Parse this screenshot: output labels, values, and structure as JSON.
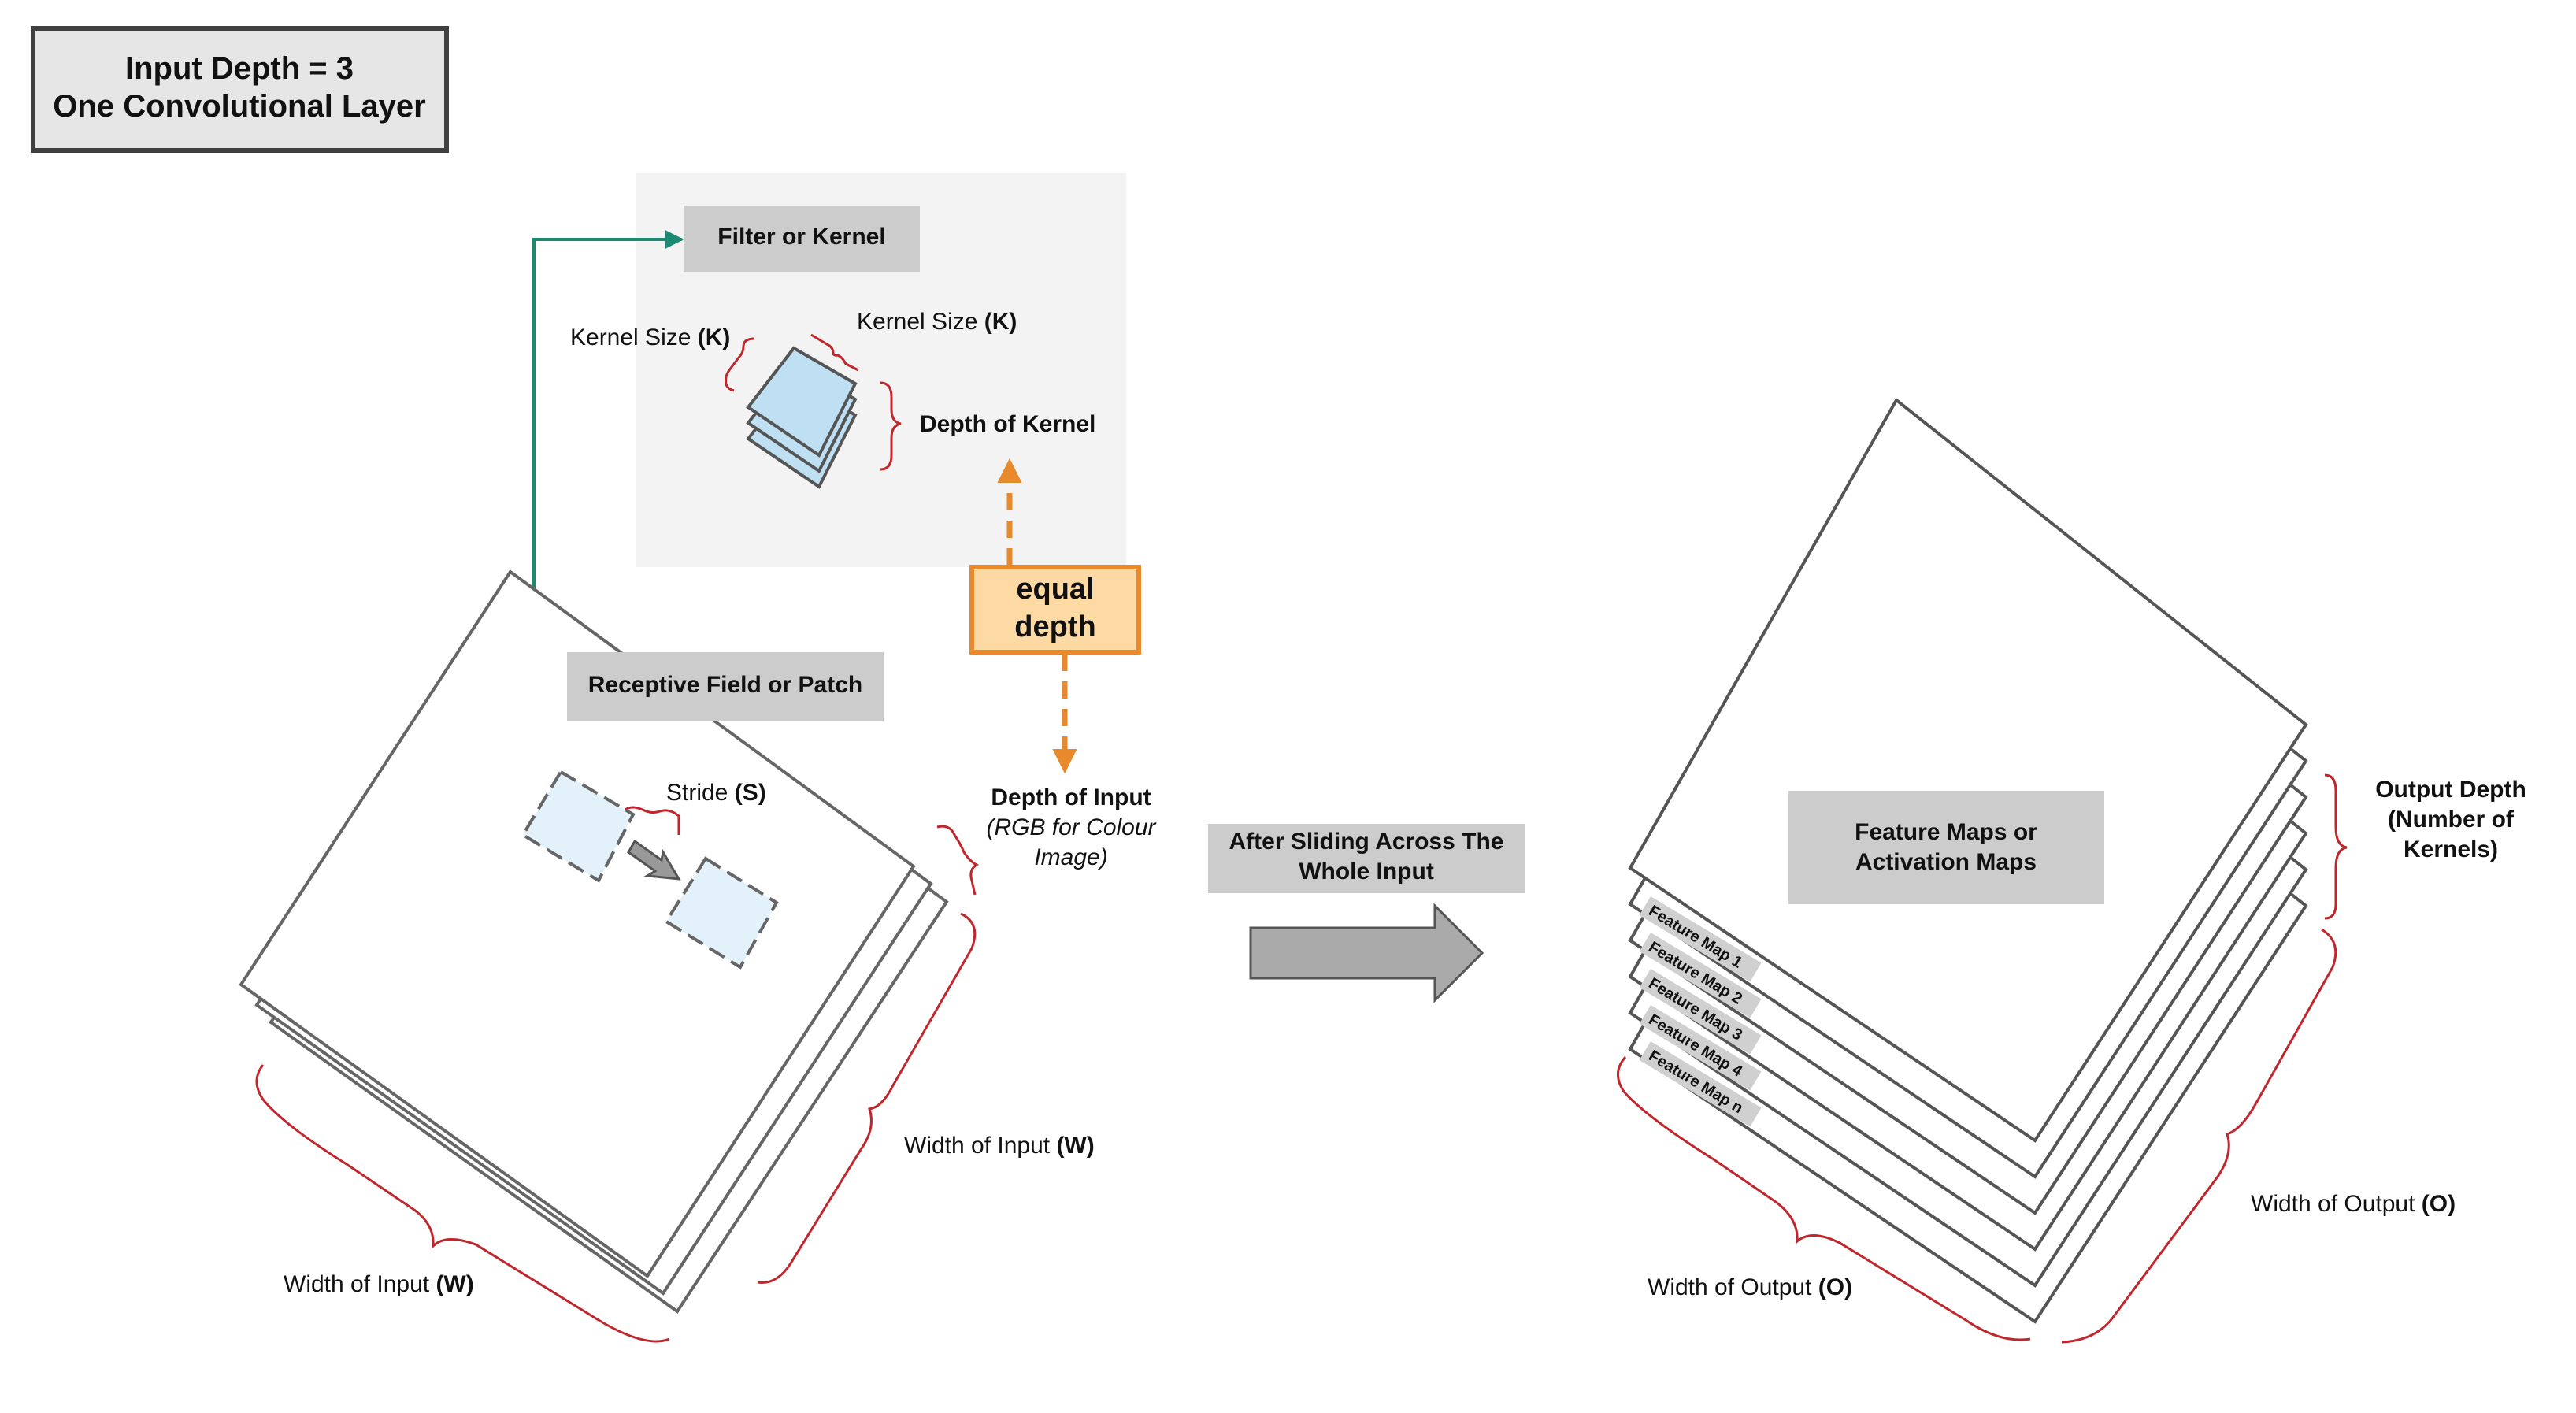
{
  "title_box": {
    "line1": "Input Depth = 3",
    "line2": "One Convolutional Layer"
  },
  "filter_panel": {
    "filter_label": "Filter or Kernel",
    "kernel_size_left": "Kernel Size ",
    "kernel_size_left_symbol": "(K)",
    "kernel_size_right": "Kernel Size ",
    "kernel_size_right_symbol": "(K)",
    "depth_of_kernel": "Depth of Kernel"
  },
  "equal_depth": {
    "line1": "equal",
    "line2": "depth"
  },
  "input": {
    "receptive_field_label": "Receptive Field or Patch",
    "stride_label": "Stride ",
    "stride_symbol": "(S)",
    "depth_title": "Depth of Input",
    "depth_note_line1": "(RGB for Colour",
    "depth_note_line2": "Image)",
    "width_right": "Width of Input ",
    "width_right_symbol": "(W)",
    "width_bottom": "Width of Input ",
    "width_bottom_symbol": "(W)"
  },
  "process": {
    "line1": "After Sliding Across The",
    "line2": "Whole Input"
  },
  "output": {
    "feature_maps_line1": "Feature Maps or",
    "feature_maps_line2": "Activation Maps",
    "depth_line1": "Output Depth",
    "depth_line2": "(Number of",
    "depth_line3": "Kernels)",
    "width_right": "Width of Output ",
    "width_right_symbol": "(O)",
    "width_bottom": "Width of Output ",
    "width_bottom_symbol": "(O)",
    "feature_map_tabs": [
      "Feature Map 1",
      "Feature Map 2",
      "Feature Map 3",
      "Feature Map 4",
      "Feature Map n"
    ]
  },
  "colors": {
    "brace": "#c0272d",
    "connector": "#1a8a72",
    "equal_depth_border": "#e8892b",
    "equal_depth_fill": "#fdd9a4",
    "label_box": "#cccccc",
    "panel": "#f3f3f3",
    "kernel_fill": "#bfe0f3",
    "patch_fill": "#e3f1fa"
  }
}
